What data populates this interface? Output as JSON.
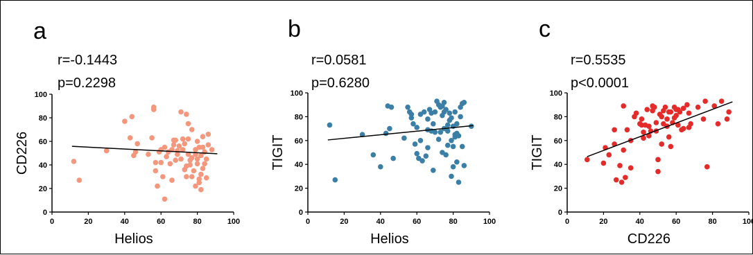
{
  "chart_data": [
    {
      "type": "scatter",
      "panel_label": "a",
      "stats": [
        "r=-0.1443",
        "p=0.2298"
      ],
      "xlabel": "Helios",
      "ylabel": "CD226",
      "xlim": [
        0,
        100
      ],
      "ylim": [
        0,
        100
      ],
      "xticks": [
        "0",
        "20",
        "40",
        "60",
        "80",
        "100"
      ],
      "yticks": [
        "0",
        "20",
        "40",
        "60",
        "80",
        "100"
      ],
      "color": "#f4977c",
      "trendline": [
        [
          11,
          55.8
        ],
        [
          91,
          49.5
        ]
      ],
      "points": [
        [
          12,
          43
        ],
        [
          15,
          27
        ],
        [
          30,
          52
        ],
        [
          40,
          77
        ],
        [
          43,
          63
        ],
        [
          44,
          81
        ],
        [
          45,
          48
        ],
        [
          46,
          51
        ],
        [
          47,
          58
        ],
        [
          53,
          49
        ],
        [
          55,
          63
        ],
        [
          56,
          89
        ],
        [
          56,
          87
        ],
        [
          57,
          42
        ],
        [
          57,
          35
        ],
        [
          58,
          22
        ],
        [
          59,
          51
        ],
        [
          60,
          42
        ],
        [
          60,
          53
        ],
        [
          61,
          30
        ],
        [
          62,
          11
        ],
        [
          62,
          55
        ],
        [
          63,
          47
        ],
        [
          64,
          51
        ],
        [
          65,
          41
        ],
        [
          66,
          27
        ],
        [
          66,
          53
        ],
        [
          67,
          61
        ],
        [
          68,
          61
        ],
        [
          68,
          44
        ],
        [
          69,
          52
        ],
        [
          69,
          49
        ],
        [
          70,
          56
        ],
        [
          71,
          85
        ],
        [
          72,
          53
        ],
        [
          72,
          62
        ],
        [
          73,
          58
        ],
        [
          73,
          36
        ],
        [
          74,
          39
        ],
        [
          74,
          30
        ],
        [
          74,
          83
        ],
        [
          75,
          49
        ],
        [
          75,
          62
        ],
        [
          75,
          75
        ],
        [
          76,
          44
        ],
        [
          76,
          40
        ],
        [
          77,
          30
        ],
        [
          77,
          70
        ],
        [
          77,
          46
        ],
        [
          78,
          35
        ],
        [
          79,
          22
        ],
        [
          79,
          53
        ],
        [
          79,
          49
        ],
        [
          80,
          45
        ],
        [
          80,
          41
        ],
        [
          80,
          60
        ],
        [
          81,
          55
        ],
        [
          81,
          25
        ],
        [
          81,
          28
        ],
        [
          82,
          19
        ],
        [
          82,
          48
        ],
        [
          82,
          32
        ],
        [
          83,
          37
        ],
        [
          83,
          64
        ],
        [
          84,
          41
        ],
        [
          84,
          51
        ],
        [
          85,
          45
        ],
        [
          85,
          29
        ],
        [
          86,
          66
        ],
        [
          86,
          57
        ],
        [
          88,
          53
        ],
        [
          83,
          55
        ],
        [
          67,
          57
        ],
        [
          71,
          45
        ]
      ]
    },
    {
      "type": "scatter",
      "panel_label": "b",
      "stats": [
        "r=0.0581",
        "p=0.6280"
      ],
      "xlabel": "Helios",
      "ylabel": "TIGIT",
      "xlim": [
        0,
        100
      ],
      "ylim": [
        0,
        100
      ],
      "xticks": [
        "0",
        "20",
        "40",
        "60",
        "80",
        "100"
      ],
      "yticks": [
        "0",
        "20",
        "40",
        "60",
        "80",
        "100"
      ],
      "color": "#3b7fa6",
      "trendline": [
        [
          11,
          60.5
        ],
        [
          91,
          72.5
        ]
      ],
      "points": [
        [
          12,
          73
        ],
        [
          15,
          27
        ],
        [
          30,
          65
        ],
        [
          36,
          48
        ],
        [
          40,
          38
        ],
        [
          43,
          66
        ],
        [
          44,
          89
        ],
        [
          45,
          70
        ],
        [
          46,
          88
        ],
        [
          47,
          45
        ],
        [
          53,
          62
        ],
        [
          55,
          88
        ],
        [
          56,
          84
        ],
        [
          57,
          82
        ],
        [
          57,
          79
        ],
        [
          58,
          74
        ],
        [
          59,
          57
        ],
        [
          60,
          49
        ],
        [
          60,
          71
        ],
        [
          61,
          45
        ],
        [
          62,
          82
        ],
        [
          62,
          60
        ],
        [
          63,
          43
        ],
        [
          64,
          84
        ],
        [
          65,
          47
        ],
        [
          66,
          54
        ],
        [
          66,
          78
        ],
        [
          67,
          86
        ],
        [
          68,
          68
        ],
        [
          68,
          83
        ],
        [
          69,
          74
        ],
        [
          69,
          35
        ],
        [
          70,
          84
        ],
        [
          71,
          93
        ],
        [
          72,
          61
        ],
        [
          72,
          90
        ],
        [
          73,
          88
        ],
        [
          73,
          67
        ],
        [
          74,
          81
        ],
        [
          74,
          50
        ],
        [
          74,
          89
        ],
        [
          75,
          92
        ],
        [
          75,
          84
        ],
        [
          75,
          70
        ],
        [
          76,
          48
        ],
        [
          76,
          86
        ],
        [
          77,
          73
        ],
        [
          77,
          68
        ],
        [
          77,
          56
        ],
        [
          78,
          83
        ],
        [
          79,
          79
        ],
        [
          79,
          30
        ],
        [
          79,
          60
        ],
        [
          80,
          72
        ],
        [
          80,
          55
        ],
        [
          80,
          38
        ],
        [
          81,
          84
        ],
        [
          81,
          65
        ],
        [
          81,
          63
        ],
        [
          82,
          42
        ],
        [
          82,
          66
        ],
        [
          82,
          74
        ],
        [
          83,
          25
        ],
        [
          83,
          64
        ],
        [
          84,
          80
        ],
        [
          84,
          88
        ],
        [
          85,
          91
        ],
        [
          85,
          55
        ],
        [
          86,
          92
        ],
        [
          86,
          39
        ],
        [
          90,
          72
        ],
        [
          66,
          69
        ],
        [
          70,
          67
        ],
        [
          78,
          77
        ]
      ]
    },
    {
      "type": "scatter",
      "panel_label": "c",
      "stats": [
        "r=0.5535",
        "p<0.0001"
      ],
      "xlabel": "CD226",
      "ylabel": "TIGIT",
      "xlim": [
        0,
        100
      ],
      "ylim": [
        0,
        100
      ],
      "xticks": [
        "0",
        "20",
        "40",
        "60",
        "80",
        "100"
      ],
      "yticks": [
        "0",
        "20",
        "40",
        "60",
        "80",
        "100"
      ],
      "color": "#e52a2a",
      "trendline": [
        [
          11,
          46.5
        ],
        [
          91,
          92.5
        ]
      ],
      "points": [
        [
          11,
          44
        ],
        [
          20,
          41
        ],
        [
          21,
          54
        ],
        [
          23,
          48
        ],
        [
          26,
          57
        ],
        [
          26,
          69
        ],
        [
          27,
          27
        ],
        [
          29,
          39
        ],
        [
          30,
          25
        ],
        [
          31,
          89
        ],
        [
          31,
          52
        ],
        [
          32,
          29
        ],
        [
          33,
          69
        ],
        [
          35,
          60
        ],
        [
          35,
          37
        ],
        [
          37,
          80
        ],
        [
          38,
          83
        ],
        [
          40,
          74
        ],
        [
          41,
          78
        ],
        [
          42,
          62
        ],
        [
          42,
          67
        ],
        [
          43,
          73
        ],
        [
          44,
          86
        ],
        [
          45,
          72
        ],
        [
          45,
          64
        ],
        [
          46,
          68
        ],
        [
          47,
          89
        ],
        [
          47,
          85
        ],
        [
          48,
          88
        ],
        [
          49,
          75
        ],
        [
          49,
          68
        ],
        [
          50,
          44
        ],
        [
          50,
          34
        ],
        [
          51,
          82
        ],
        [
          52,
          57
        ],
        [
          52,
          80
        ],
        [
          53,
          85
        ],
        [
          54,
          88
        ],
        [
          55,
          72
        ],
        [
          55,
          78
        ],
        [
          56,
          63
        ],
        [
          57,
          55
        ],
        [
          57,
          84
        ],
        [
          58,
          75
        ],
        [
          59,
          88
        ],
        [
          59,
          79
        ],
        [
          60,
          81
        ],
        [
          61,
          86
        ],
        [
          61,
          73
        ],
        [
          62,
          84
        ],
        [
          63,
          69
        ],
        [
          64,
          87
        ],
        [
          64,
          70
        ],
        [
          66,
          90
        ],
        [
          67,
          83
        ],
        [
          67,
          71
        ],
        [
          68,
          74
        ],
        [
          72,
          88
        ],
        [
          75,
          78
        ],
        [
          76,
          93
        ],
        [
          77,
          38
        ],
        [
          81,
          89
        ],
        [
          83,
          74
        ],
        [
          85,
          93
        ],
        [
          88,
          78
        ],
        [
          89,
          84
        ],
        [
          41,
          73
        ],
        [
          53,
          74
        ],
        [
          56,
          84
        ],
        [
          60,
          86
        ]
      ]
    }
  ]
}
